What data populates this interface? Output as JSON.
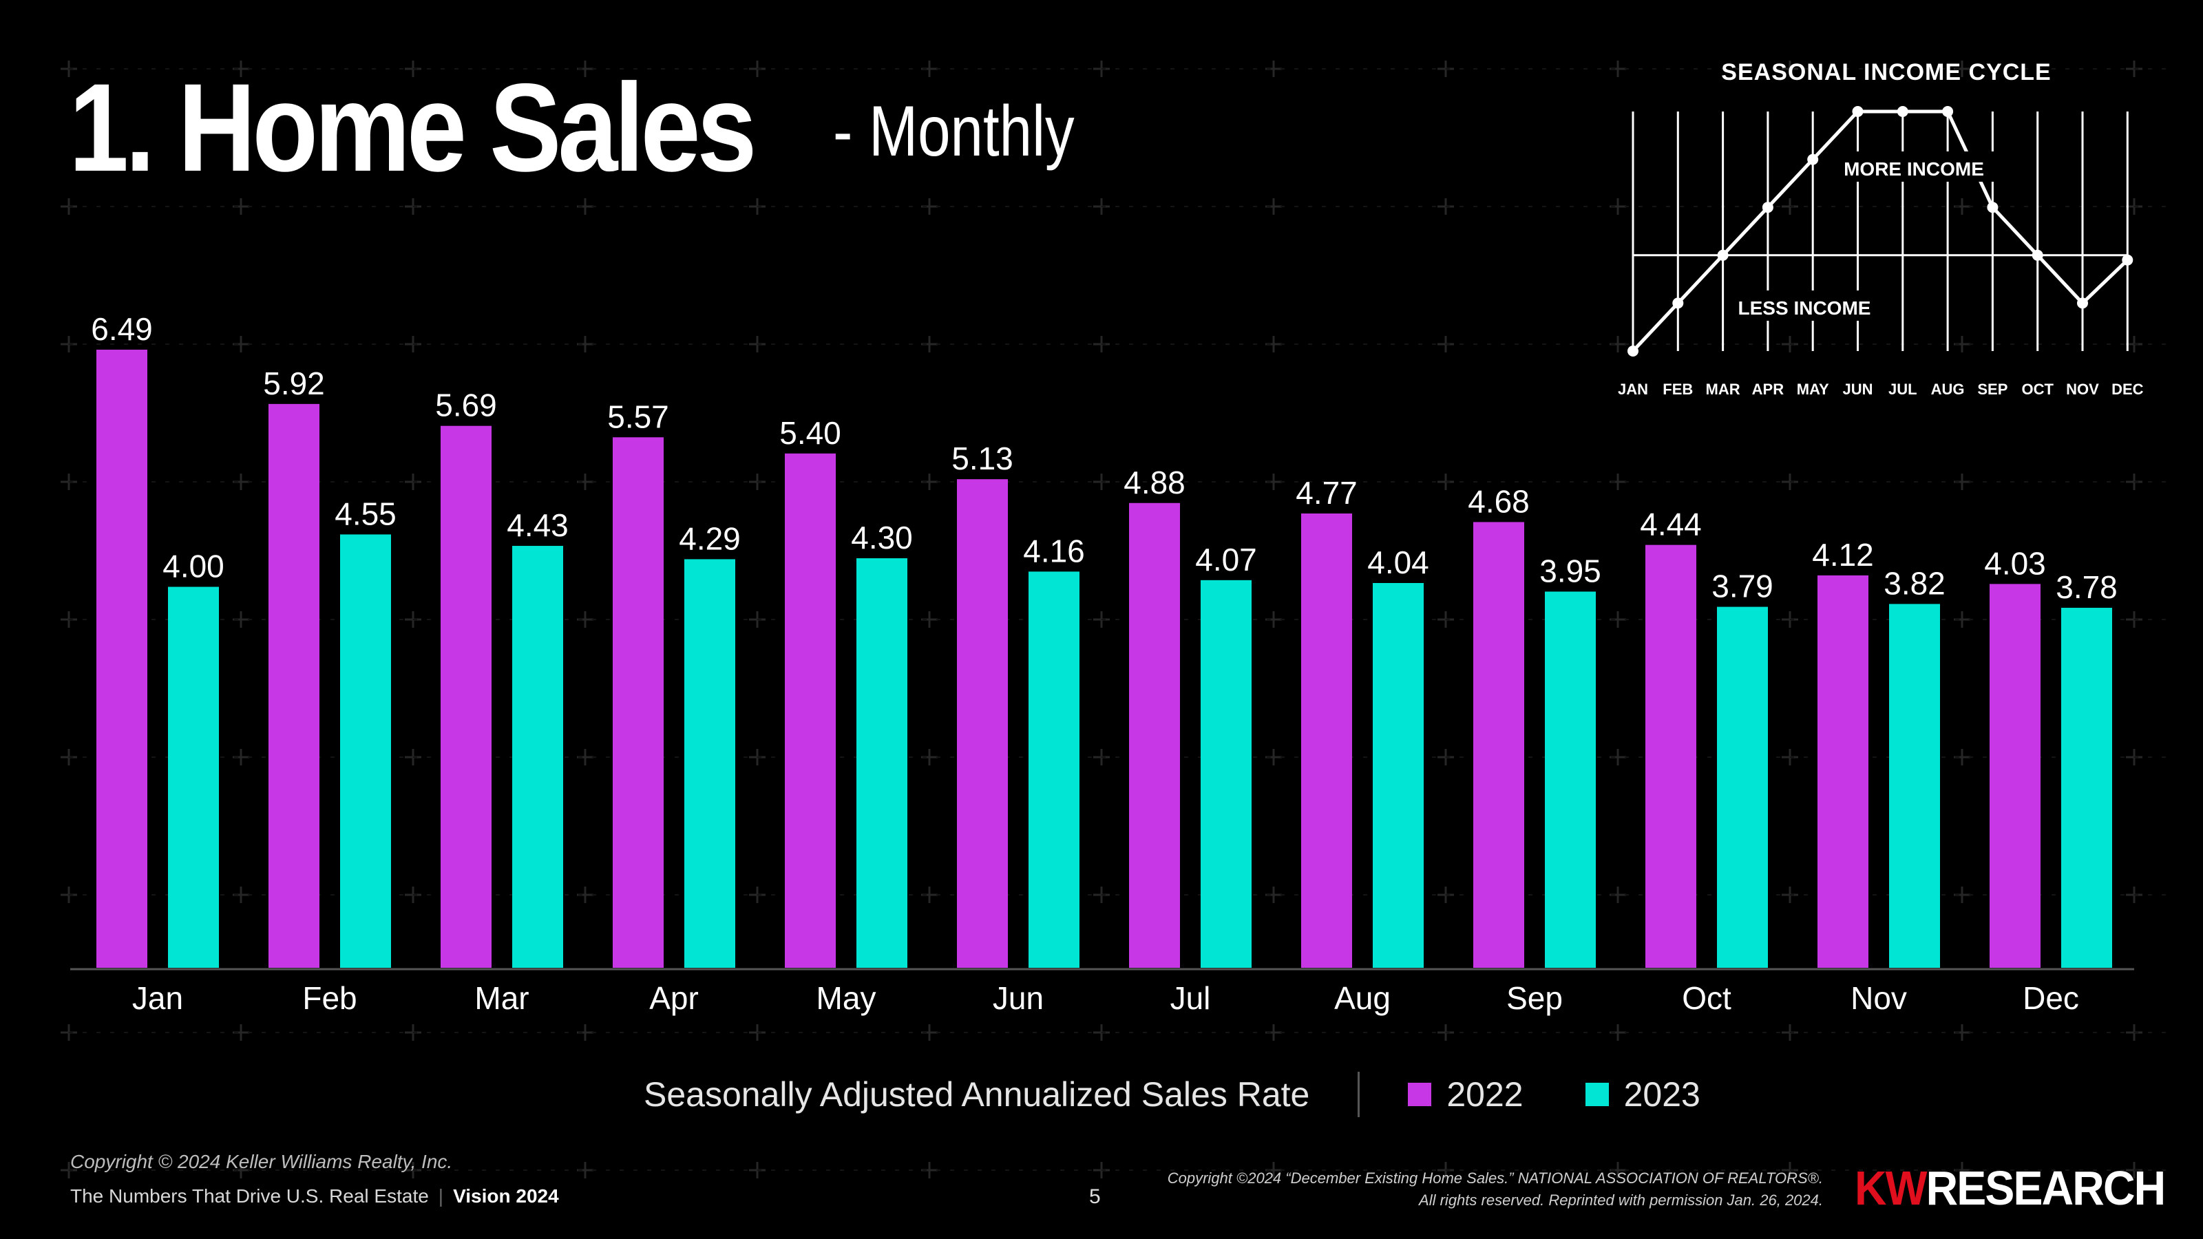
{
  "header": {
    "title": "1. Home Sales",
    "subtitle": "- Monthly"
  },
  "chart_data": {
    "type": "bar",
    "categories": [
      "Jan",
      "Feb",
      "Mar",
      "Apr",
      "May",
      "Jun",
      "Jul",
      "Aug",
      "Sep",
      "Oct",
      "Nov",
      "Dec"
    ],
    "series": [
      {
        "name": "2022",
        "color": "#c837e6",
        "values": [
          6.49,
          5.92,
          5.69,
          5.57,
          5.4,
          5.13,
          4.88,
          4.77,
          4.68,
          4.44,
          4.12,
          4.03
        ]
      },
      {
        "name": "2023",
        "color": "#00e5d4",
        "values": [
          4.0,
          4.55,
          4.43,
          4.29,
          4.3,
          4.16,
          4.07,
          4.04,
          3.95,
          3.79,
          3.82,
          3.78
        ]
      }
    ],
    "ylim": [
      0,
      6.49
    ],
    "grid": false,
    "legend_title": "Seasonally Adjusted Annualized Sales Rate",
    "legend_position": "bottom-center"
  },
  "inset_chart": {
    "type": "line",
    "title": "SEASONAL INCOME CYCLE",
    "months": [
      "JAN",
      "FEB",
      "MAR",
      "APR",
      "MAY",
      "JUN",
      "JUL",
      "AUG",
      "SEP",
      "OCT",
      "NOV",
      "DEC"
    ],
    "levels": [
      0.0,
      0.2,
      0.4,
      0.6,
      0.8,
      1.0,
      1.0,
      1.0,
      0.6,
      0.4,
      0.2,
      0.38
    ],
    "baseline": 0.4,
    "label_above": "MORE INCOME",
    "label_below": "LESS INCOME"
  },
  "footer": {
    "copyright": "Copyright © 2024 Keller Williams Realty, Inc.",
    "tagline": "The Numbers That Drive U.S. Real Estate",
    "vision": "Vision 2024",
    "page_number": "5",
    "source_line1": "Copyright ©2024 “December Existing Home Sales.” NATIONAL ASSOCIATION OF REALTORS®.",
    "source_line2": "All rights reserved. Reprinted with permission Jan. 26, 2024.",
    "logo_kw": "KW",
    "logo_research": "RESEARCH"
  }
}
